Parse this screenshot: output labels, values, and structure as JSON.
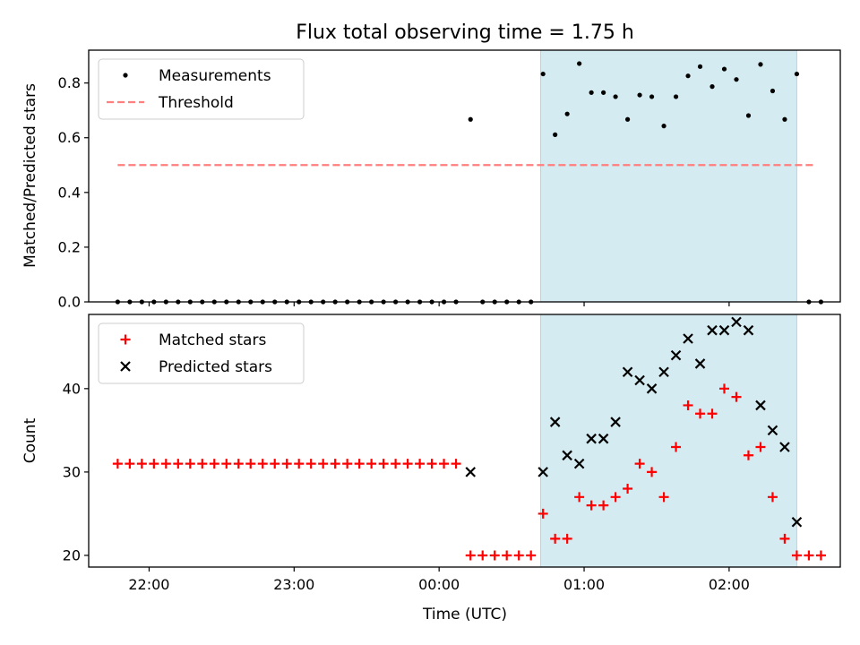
{
  "chart_data": [
    {
      "type": "scatter",
      "title": "Flux total observing time = 1.75 h",
      "xlabel": "",
      "ylabel": "Matched/Predicted stars",
      "ylim": [
        0,
        0.92
      ],
      "yticks": [
        "0.0",
        "0.2",
        "0.4",
        "0.6",
        "0.8"
      ],
      "ytick_values": [
        0,
        0.2,
        0.4,
        0.6,
        0.8
      ],
      "xticks_values": [
        "2023-01-01 22:00",
        "2023-01-01 23:00",
        "2023-01-02 00:00",
        "2023-01-02 01:00",
        "2023-01-02 02:00"
      ],
      "highlight_span": [
        "2023-01-02 00:42",
        "2023-01-02 02:28"
      ],
      "highlight_color": "#add8e6",
      "legend": "top-left",
      "series": [
        {
          "name": "Measurements",
          "color": "#000000",
          "marker": "dot",
          "points": [
            [
              "2023-01-01 21:47",
              0
            ],
            [
              "2023-01-01 21:52",
              0
            ],
            [
              "2023-01-01 21:57",
              0
            ],
            [
              "2023-01-01 22:02",
              0
            ],
            [
              "2023-01-01 22:07",
              0
            ],
            [
              "2023-01-01 22:12",
              0
            ],
            [
              "2023-01-01 22:17",
              0
            ],
            [
              "2023-01-01 22:22",
              0
            ],
            [
              "2023-01-01 22:27",
              0
            ],
            [
              "2023-01-01 22:32",
              0
            ],
            [
              "2023-01-01 22:37",
              0
            ],
            [
              "2023-01-01 22:42",
              0
            ],
            [
              "2023-01-01 22:47",
              0
            ],
            [
              "2023-01-01 22:52",
              0
            ],
            [
              "2023-01-01 22:57",
              0
            ],
            [
              "2023-01-01 23:02",
              0
            ],
            [
              "2023-01-01 23:07",
              0
            ],
            [
              "2023-01-01 23:12",
              0
            ],
            [
              "2023-01-01 23:17",
              0
            ],
            [
              "2023-01-01 23:22",
              0
            ],
            [
              "2023-01-01 23:27",
              0
            ],
            [
              "2023-01-01 23:32",
              0
            ],
            [
              "2023-01-01 23:37",
              0
            ],
            [
              "2023-01-01 23:42",
              0
            ],
            [
              "2023-01-01 23:47",
              0
            ],
            [
              "2023-01-01 23:52",
              0
            ],
            [
              "2023-01-01 23:57",
              0
            ],
            [
              "2023-01-02 00:02",
              0
            ],
            [
              "2023-01-02 00:07",
              0
            ],
            [
              "2023-01-02 00:13",
              0.667
            ],
            [
              "2023-01-02 00:18",
              0
            ],
            [
              "2023-01-02 00:23",
              0
            ],
            [
              "2023-01-02 00:28",
              0
            ],
            [
              "2023-01-02 00:33",
              0
            ],
            [
              "2023-01-02 00:38",
              0
            ],
            [
              "2023-01-02 00:43",
              0.833
            ],
            [
              "2023-01-02 00:48",
              0.611
            ],
            [
              "2023-01-02 00:53",
              0.687
            ],
            [
              "2023-01-02 00:58",
              0.871
            ],
            [
              "2023-01-02 01:03",
              0.765
            ],
            [
              "2023-01-02 01:08",
              0.765
            ],
            [
              "2023-01-02 01:13",
              0.75
            ],
            [
              "2023-01-02 01:18",
              0.667
            ],
            [
              "2023-01-02 01:23",
              0.756
            ],
            [
              "2023-01-02 01:28",
              0.75
            ],
            [
              "2023-01-02 01:33",
              0.643
            ],
            [
              "2023-01-02 01:38",
              0.75
            ],
            [
              "2023-01-02 01:43",
              0.826
            ],
            [
              "2023-01-02 01:48",
              0.86
            ],
            [
              "2023-01-02 01:53",
              0.787
            ],
            [
              "2023-01-02 01:58",
              0.851
            ],
            [
              "2023-01-02 02:03",
              0.813
            ],
            [
              "2023-01-02 02:08",
              0.681
            ],
            [
              "2023-01-02 02:13",
              0.868
            ],
            [
              "2023-01-02 02:18",
              0.771
            ],
            [
              "2023-01-02 02:23",
              0.667
            ],
            [
              "2023-01-02 02:28",
              0.833
            ],
            [
              "2023-01-02 02:33",
              0
            ],
            [
              "2023-01-02 02:38",
              0
            ]
          ]
        },
        {
          "name": "Threshold",
          "color": "#ff7f7f",
          "style": "dashed",
          "points": [
            [
              "2023-01-01 21:47",
              0.5
            ],
            [
              "2023-01-02 02:36",
              0.5
            ]
          ]
        }
      ]
    },
    {
      "type": "scatter",
      "title": "",
      "xlabel": "Time (UTC)",
      "ylabel": "Count",
      "ylim": [
        18.6,
        48.9
      ],
      "yticks": [
        "20",
        "30",
        "40"
      ],
      "ytick_values": [
        20,
        30,
        40
      ],
      "xticks": [
        "22:00",
        "23:00",
        "00:00",
        "01:00",
        "02:00"
      ],
      "xticks_values": [
        "2023-01-01 22:00",
        "2023-01-01 23:00",
        "2023-01-02 00:00",
        "2023-01-02 01:00",
        "2023-01-02 02:00"
      ],
      "xlim": [
        "2023-01-01 21:35",
        "2023-01-02 02:46"
      ],
      "highlight_span": [
        "2023-01-02 00:42",
        "2023-01-02 02:28"
      ],
      "highlight_color": "#add8e6",
      "legend": "top-left",
      "series": [
        {
          "name": "Matched stars",
          "color": "#ff0000",
          "marker": "plus",
          "points": [
            [
              "2023-01-01 21:47",
              31
            ],
            [
              "2023-01-01 21:52",
              31
            ],
            [
              "2023-01-01 21:57",
              31
            ],
            [
              "2023-01-01 22:02",
              31
            ],
            [
              "2023-01-01 22:07",
              31
            ],
            [
              "2023-01-01 22:12",
              31
            ],
            [
              "2023-01-01 22:17",
              31
            ],
            [
              "2023-01-01 22:22",
              31
            ],
            [
              "2023-01-01 22:27",
              31
            ],
            [
              "2023-01-01 22:32",
              31
            ],
            [
              "2023-01-01 22:37",
              31
            ],
            [
              "2023-01-01 22:42",
              31
            ],
            [
              "2023-01-01 22:47",
              31
            ],
            [
              "2023-01-01 22:52",
              31
            ],
            [
              "2023-01-01 22:57",
              31
            ],
            [
              "2023-01-01 23:02",
              31
            ],
            [
              "2023-01-01 23:07",
              31
            ],
            [
              "2023-01-01 23:12",
              31
            ],
            [
              "2023-01-01 23:17",
              31
            ],
            [
              "2023-01-01 23:22",
              31
            ],
            [
              "2023-01-01 23:27",
              31
            ],
            [
              "2023-01-01 23:32",
              31
            ],
            [
              "2023-01-01 23:37",
              31
            ],
            [
              "2023-01-01 23:42",
              31
            ],
            [
              "2023-01-01 23:47",
              31
            ],
            [
              "2023-01-01 23:52",
              31
            ],
            [
              "2023-01-01 23:57",
              31
            ],
            [
              "2023-01-02 00:02",
              31
            ],
            [
              "2023-01-02 00:07",
              31
            ],
            [
              "2023-01-02 00:13",
              20
            ],
            [
              "2023-01-02 00:18",
              20
            ],
            [
              "2023-01-02 00:23",
              20
            ],
            [
              "2023-01-02 00:28",
              20
            ],
            [
              "2023-01-02 00:33",
              20
            ],
            [
              "2023-01-02 00:38",
              20
            ],
            [
              "2023-01-02 00:43",
              25
            ],
            [
              "2023-01-02 00:48",
              22
            ],
            [
              "2023-01-02 00:53",
              22
            ],
            [
              "2023-01-02 00:58",
              27
            ],
            [
              "2023-01-02 01:03",
              26
            ],
            [
              "2023-01-02 01:08",
              26
            ],
            [
              "2023-01-02 01:13",
              27
            ],
            [
              "2023-01-02 01:18",
              28
            ],
            [
              "2023-01-02 01:23",
              31
            ],
            [
              "2023-01-02 01:28",
              30
            ],
            [
              "2023-01-02 01:33",
              27
            ],
            [
              "2023-01-02 01:38",
              33
            ],
            [
              "2023-01-02 01:43",
              38
            ],
            [
              "2023-01-02 01:48",
              37
            ],
            [
              "2023-01-02 01:53",
              37
            ],
            [
              "2023-01-02 01:58",
              40
            ],
            [
              "2023-01-02 02:03",
              39
            ],
            [
              "2023-01-02 02:08",
              32
            ],
            [
              "2023-01-02 02:13",
              33
            ],
            [
              "2023-01-02 02:18",
              27
            ],
            [
              "2023-01-02 02:23",
              22
            ],
            [
              "2023-01-02 02:28",
              20
            ],
            [
              "2023-01-02 02:33",
              20
            ],
            [
              "2023-01-02 02:38",
              20
            ]
          ]
        },
        {
          "name": "Predicted stars",
          "color": "#000000",
          "marker": "x",
          "points": [
            [
              "2023-01-02 00:13",
              30
            ],
            [
              "2023-01-02 00:43",
              30
            ],
            [
              "2023-01-02 00:48",
              36
            ],
            [
              "2023-01-02 00:53",
              32
            ],
            [
              "2023-01-02 00:58",
              31
            ],
            [
              "2023-01-02 01:03",
              34
            ],
            [
              "2023-01-02 01:08",
              34
            ],
            [
              "2023-01-02 01:13",
              36
            ],
            [
              "2023-01-02 01:18",
              42
            ],
            [
              "2023-01-02 01:23",
              41
            ],
            [
              "2023-01-02 01:28",
              40
            ],
            [
              "2023-01-02 01:33",
              42
            ],
            [
              "2023-01-02 01:38",
              44
            ],
            [
              "2023-01-02 01:43",
              46
            ],
            [
              "2023-01-02 01:48",
              43
            ],
            [
              "2023-01-02 01:53",
              47
            ],
            [
              "2023-01-02 01:58",
              47
            ],
            [
              "2023-01-02 02:03",
              48
            ],
            [
              "2023-01-02 02:08",
              47
            ],
            [
              "2023-01-02 02:13",
              38
            ],
            [
              "2023-01-02 02:18",
              35
            ],
            [
              "2023-01-02 02:23",
              33
            ],
            [
              "2023-01-02 02:28",
              24
            ]
          ]
        }
      ]
    }
  ]
}
